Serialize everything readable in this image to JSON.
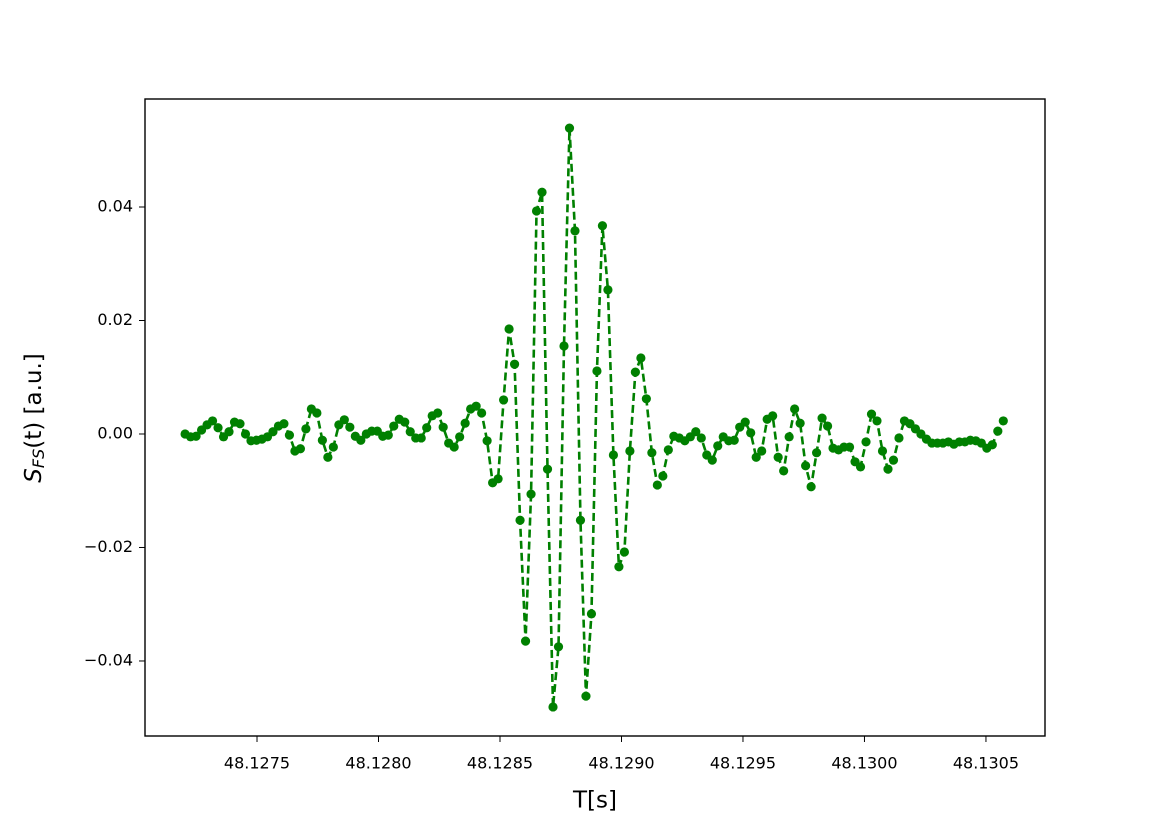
{
  "chart_data": {
    "type": "line",
    "x_label": "T[s]",
    "y_label": {
      "symbol": "S",
      "subscript": "FS",
      "rest": "(t) [a.u.]"
    },
    "color": "#008000",
    "line_style": "dashed",
    "markers": true,
    "xlim": [
      48.127039,
      48.130743
    ],
    "ylim": [
      -0.05322,
      0.05903
    ],
    "xticks": [
      48.1275,
      {
        "value": 48.128,
        "label": "48.1280"
      },
      48.1285,
      {
        "value": 48.129,
        "label": "48.1290"
      },
      48.1295,
      {
        "value": 48.13,
        "label": "48.1300"
      },
      48.1305
    ],
    "yticks": [
      {
        "value": -0.04,
        "label": "−0.04"
      },
      {
        "value": -0.02,
        "label": "−0.02"
      },
      {
        "value": 0,
        "label": "0.00"
      },
      0.02,
      0.04
    ],
    "x": [
      48.127204,
      48.1272266,
      48.1272492,
      48.1272718,
      48.1272944,
      48.127317,
      48.1273396,
      48.1273622,
      48.1273848,
      48.1274074,
      48.12743,
      48.1274526,
      48.1274752,
      48.1274978,
      48.1275204,
      48.127543,
      48.1275656,
      48.1275882,
      48.1276108,
      48.1276334,
      48.127656,
      48.1276786,
      48.1277012,
      48.1277238,
      48.1277464,
      48.127769,
      48.1277916,
      48.1278142,
      48.1278368,
      48.1278594,
      48.127882,
      48.1279046,
      48.1279272,
      48.1279498,
      48.1279724,
      48.127995,
      48.1280176,
      48.1280402,
      48.1280628,
      48.1280854,
      48.128108,
      48.1281306,
      48.1281532,
      48.1281758,
      48.1281984,
      48.128221,
      48.1282436,
      48.1282662,
      48.1282888,
      48.1283114,
      48.128334,
      48.1283566,
      48.1283792,
      48.1284018,
      48.1284244,
      48.128447,
      48.1284696,
      48.1284922,
      48.1285148,
      48.1285374,
      48.12856,
      48.1285826,
      48.1286052,
      48.1286278,
      48.1286504,
      48.128673,
      48.1286956,
      48.1287182,
      48.1287408,
      48.1287634,
      48.128786,
      48.1288086,
      48.1288312,
      48.1288538,
      48.1288764,
      48.128899,
      48.1289216,
      48.1289442,
      48.1289668,
      48.1289894,
      48.129012,
      48.1290346,
      48.1290572,
      48.1290798,
      48.1291024,
      48.129125,
      48.1291476,
      48.1291702,
      48.1291928,
      48.1292154,
      48.129238,
      48.1292606,
      48.1292832,
      48.1293058,
      48.1293284,
      48.129351,
      48.1293736,
      48.1293962,
      48.1294188,
      48.1294414,
      48.129464,
      48.1294866,
      48.1295092,
      48.1295318,
      48.1295544,
      48.129577,
      48.1295996,
      48.1296222,
      48.1296448,
      48.1296674,
      48.12969,
      48.1297126,
      48.1297352,
      48.1297578,
      48.1297804,
      48.129803,
      48.1298256,
      48.1298482,
      48.1298708,
      48.1298934,
      48.129916,
      48.1299386,
      48.1299612,
      48.1299838,
      48.1300064,
      48.130029,
      48.1300516,
      48.1300742,
      48.1300968,
      48.1301194,
      48.130142,
      48.1301646,
      48.1301872,
      48.1302098,
      48.1302324,
      48.130255,
      48.1302776,
      48.1303002,
      48.1303228,
      48.1303454,
      48.130368,
      48.1303906,
      48.1304132,
      48.1304358,
      48.1304584,
      48.130481,
      48.1305036,
      48.1305262,
      48.1305488,
      48.1305714
    ],
    "values": [
      0,
      -0.0005,
      -0.0004,
      0.0007,
      0.0016,
      0.0023,
      0.0011,
      -0.0005,
      0.0004,
      0.0021,
      0.0018,
      0,
      -0.0012,
      -0.0011,
      -0.0009,
      -0.0005,
      0.0004,
      0.0014,
      0.0018,
      -0.0002,
      -0.003,
      -0.0026,
      0.0009,
      0.0044,
      0.0037,
      -0.0011,
      -0.0041,
      -0.0023,
      0.0016,
      0.0025,
      0.0012,
      -0.0004,
      -0.0011,
      0,
      0.0005,
      0.0005,
      -0.0004,
      -0.0002,
      0.0014,
      0.0026,
      0.0021,
      0.0004,
      -0.0007,
      -0.0007,
      0.0011,
      0.0032,
      0.0037,
      0.0012,
      -0.0016,
      -0.0023,
      -0.0005,
      0.0019,
      0.0044,
      0.0049,
      0.0037,
      -0.0012,
      -0.0086,
      -0.0079,
      0.006,
      0.0185,
      0.0123,
      -0.0152,
      -0.0365,
      -0.0106,
      0.0393,
      0.0426,
      -0.0062,
      -0.0481,
      -0.0375,
      0.0155,
      0.0539,
      0.0358,
      -0.0152,
      -0.0462,
      -0.0317,
      0.0111,
      0.0367,
      0.0254,
      -0.0037,
      -0.0234,
      -0.0208,
      -0.003,
      0.0109,
      0.0134,
      0.0062,
      -0.0033,
      -0.009,
      -0.0074,
      -0.0028,
      -0.0004,
      -0.0007,
      -0.0012,
      -0.0005,
      0.0004,
      -0.0007,
      -0.0037,
      -0.0046,
      -0.0021,
      -0.0005,
      -0.0012,
      -0.0011,
      0.0012,
      0.0021,
      0.0002,
      -0.0041,
      -0.003,
      0.0026,
      0.0032,
      -0.0041,
      -0.0065,
      -0.0005,
      0.0044,
      0.0019,
      -0.0056,
      -0.0093,
      -0.0033,
      0.0028,
      0.0014,
      -0.0025,
      -0.0028,
      -0.0023,
      -0.0023,
      -0.0049,
      -0.0058,
      -0.0014,
      0.0035,
      0.0023,
      -0.003,
      -0.0062,
      -0.0046,
      -0.0007,
      0.0023,
      0.0018,
      0.0009,
      0,
      -0.0009,
      -0.0016,
      -0.0016,
      -0.0016,
      -0.0014,
      -0.0018,
      -0.0014,
      -0.0014,
      -0.0011,
      -0.0012,
      -0.0016,
      -0.0025,
      -0.0019,
      0.0005,
      0.0023
    ]
  }
}
